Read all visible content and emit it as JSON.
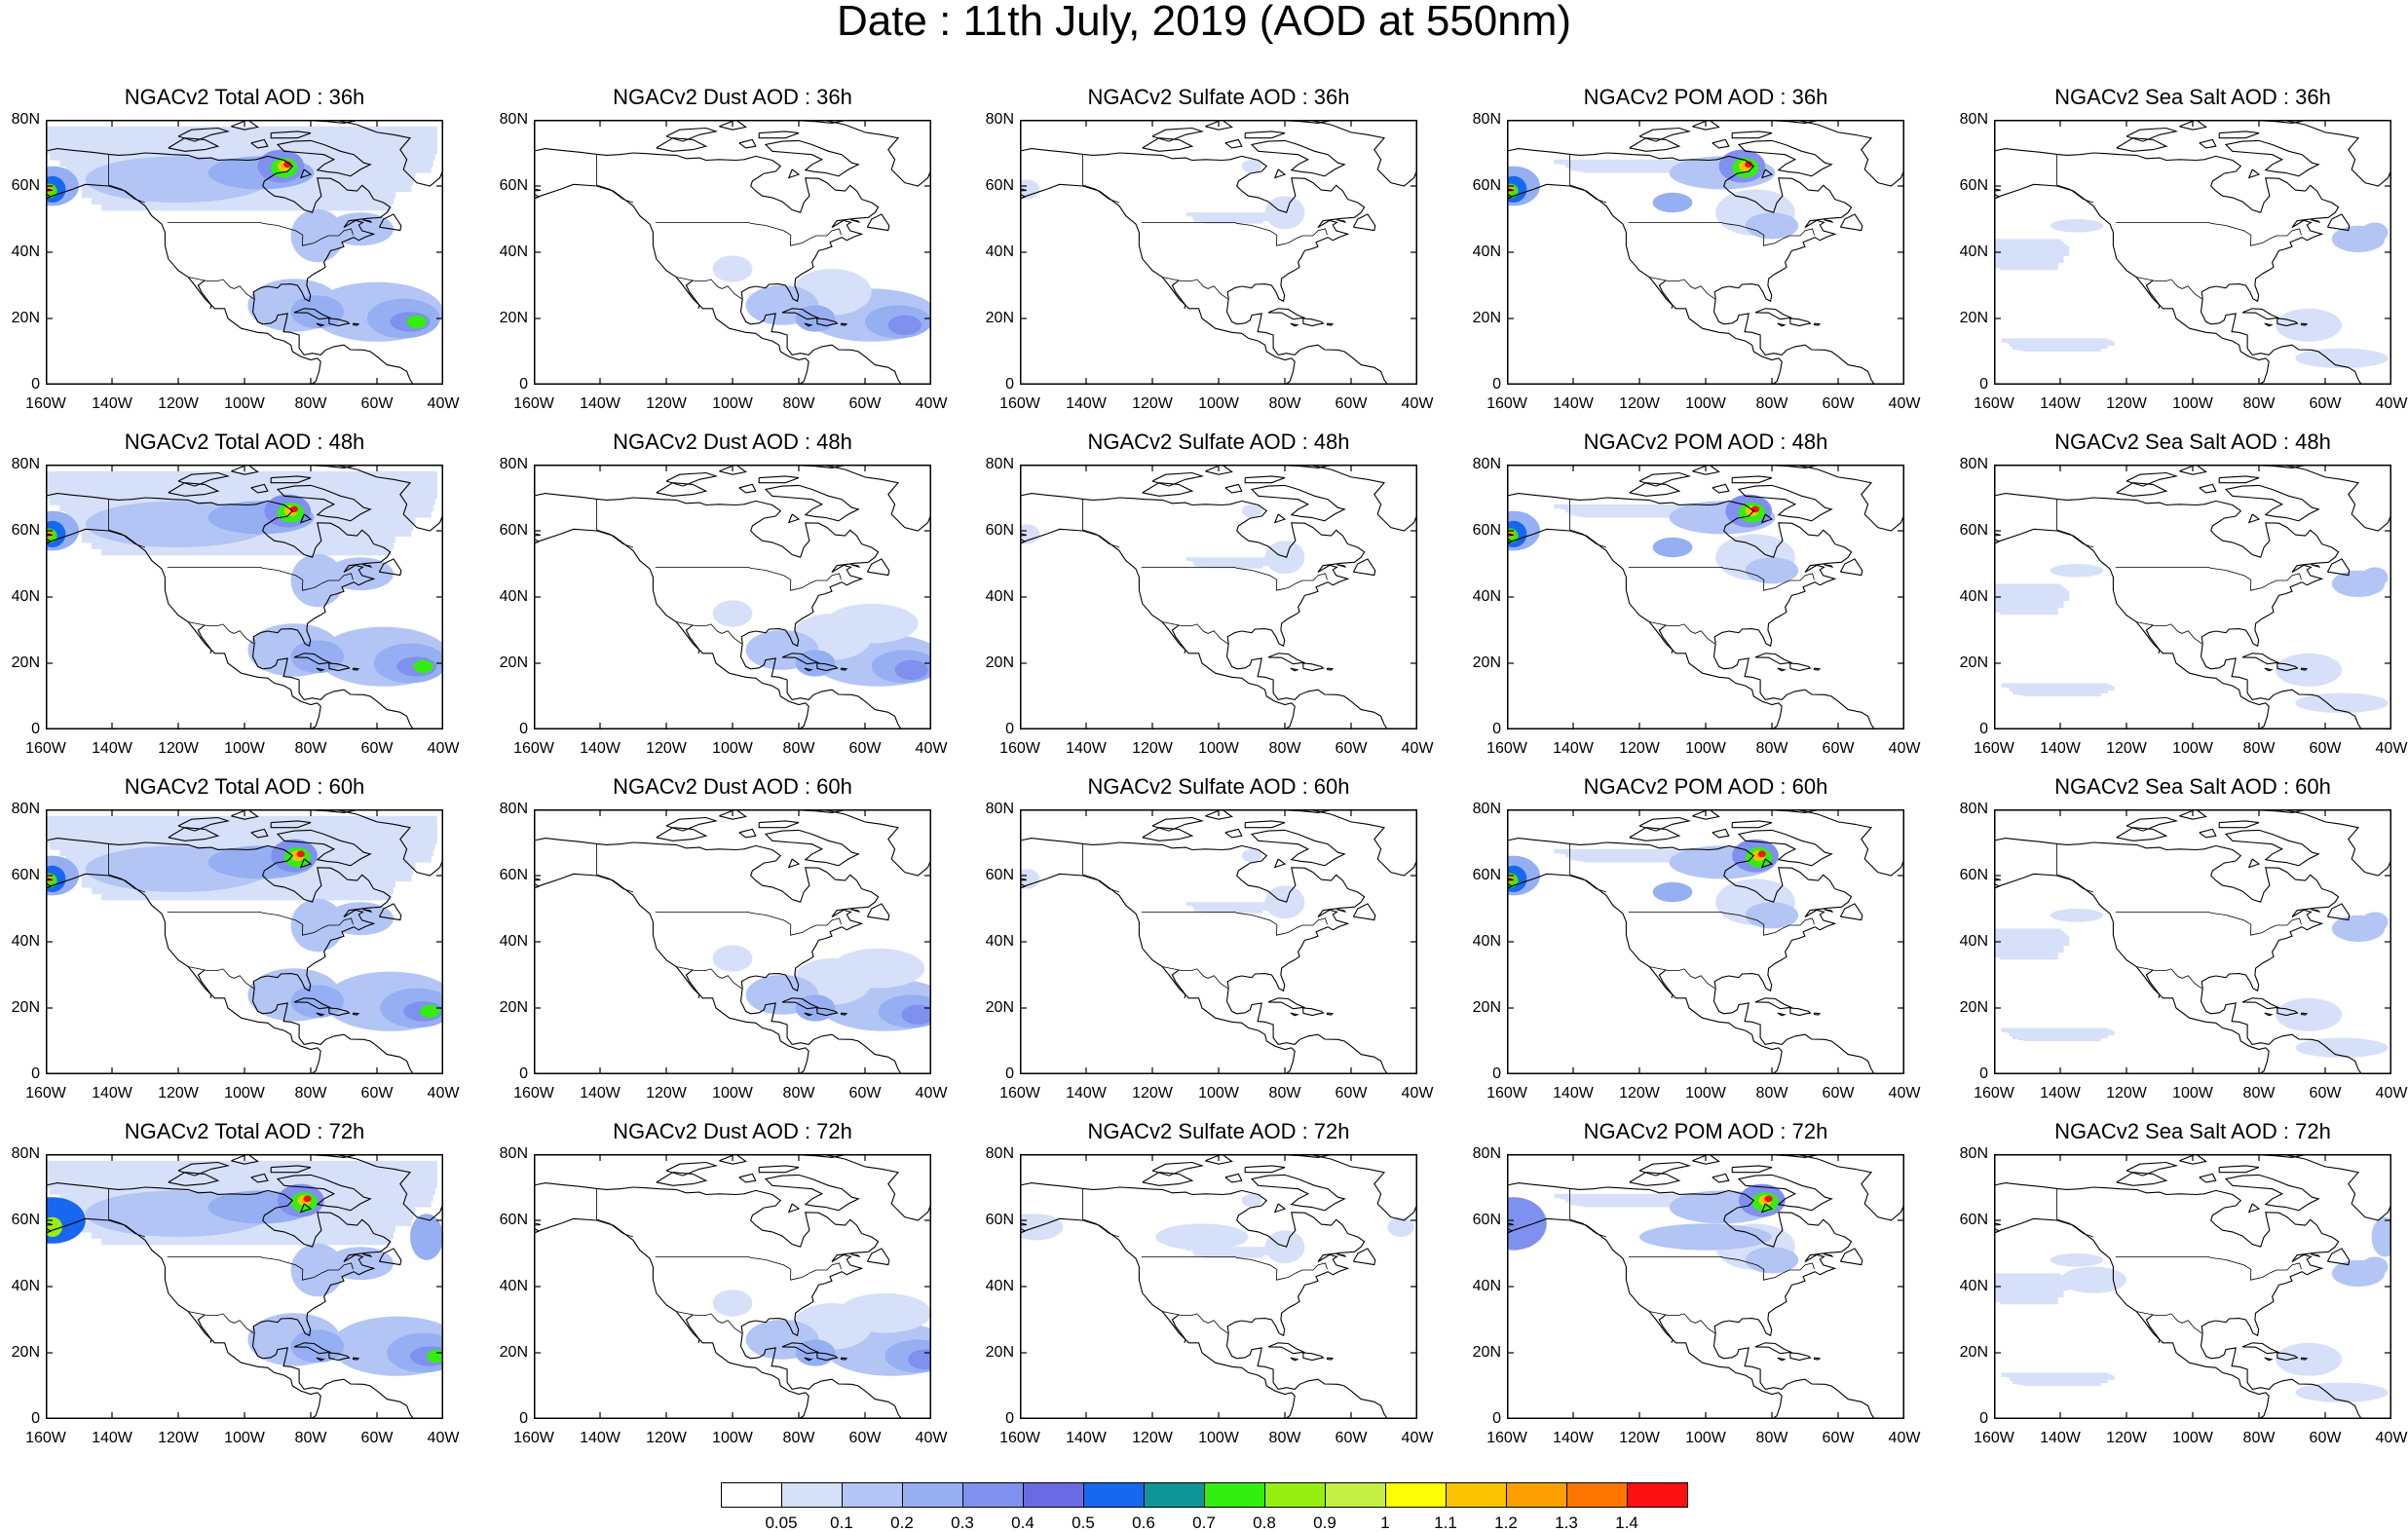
{
  "title": "Date : 11th July, 2019 (AOD at 550nm)",
  "lat_labels": [
    "80N",
    "60N",
    "40N",
    "20N",
    "0"
  ],
  "lon_labels": [
    "160W",
    "140W",
    "120W",
    "100W",
    "80W",
    "60W",
    "40W"
  ],
  "panel_titles": [
    [
      "NGACv2 Total AOD : 36h",
      "NGACv2 Dust AOD : 36h",
      "NGACv2 Sulfate AOD : 36h",
      "NGACv2 POM AOD : 36h",
      "NGACv2 Sea Salt AOD : 36h"
    ],
    [
      "NGACv2 Total AOD : 48h",
      "NGACv2 Dust AOD : 48h",
      "NGACv2 Sulfate AOD : 48h",
      "NGACv2 POM AOD : 48h",
      "NGACv2 Sea Salt AOD : 48h"
    ],
    [
      "NGACv2 Total AOD : 60h",
      "NGACv2 Dust AOD : 60h",
      "NGACv2 Sulfate AOD : 60h",
      "NGACv2 POM AOD : 60h",
      "NGACv2 Sea Salt AOD : 60h"
    ],
    [
      "NGACv2 Total AOD : 72h",
      "NGACv2 Dust AOD : 72h",
      "NGACv2 Sulfate AOD : 72h",
      "NGACv2 POM AOD : 72h",
      "NGACv2 Sea Salt  AOD : 72h"
    ]
  ],
  "colorbar": {
    "labels": [
      "0.05",
      "0.1",
      "0.2",
      "0.3",
      "0.4",
      "0.5",
      "0.6",
      "0.7",
      "0.8",
      "0.9",
      "1",
      "1.1",
      "1.2",
      "1.3",
      "1.4"
    ],
    "colors": [
      "#ffffff",
      "#d6e0f9",
      "#b3c5f5",
      "#95aff2",
      "#7f90ee",
      "#6a6ae4",
      "#1767f0",
      "#0f9696",
      "#33ee11",
      "#98ee11",
      "#c4ee44",
      "#fdfd05",
      "#fbc200",
      "#fba000",
      "#fb7500",
      "#fb1010"
    ]
  }
}
